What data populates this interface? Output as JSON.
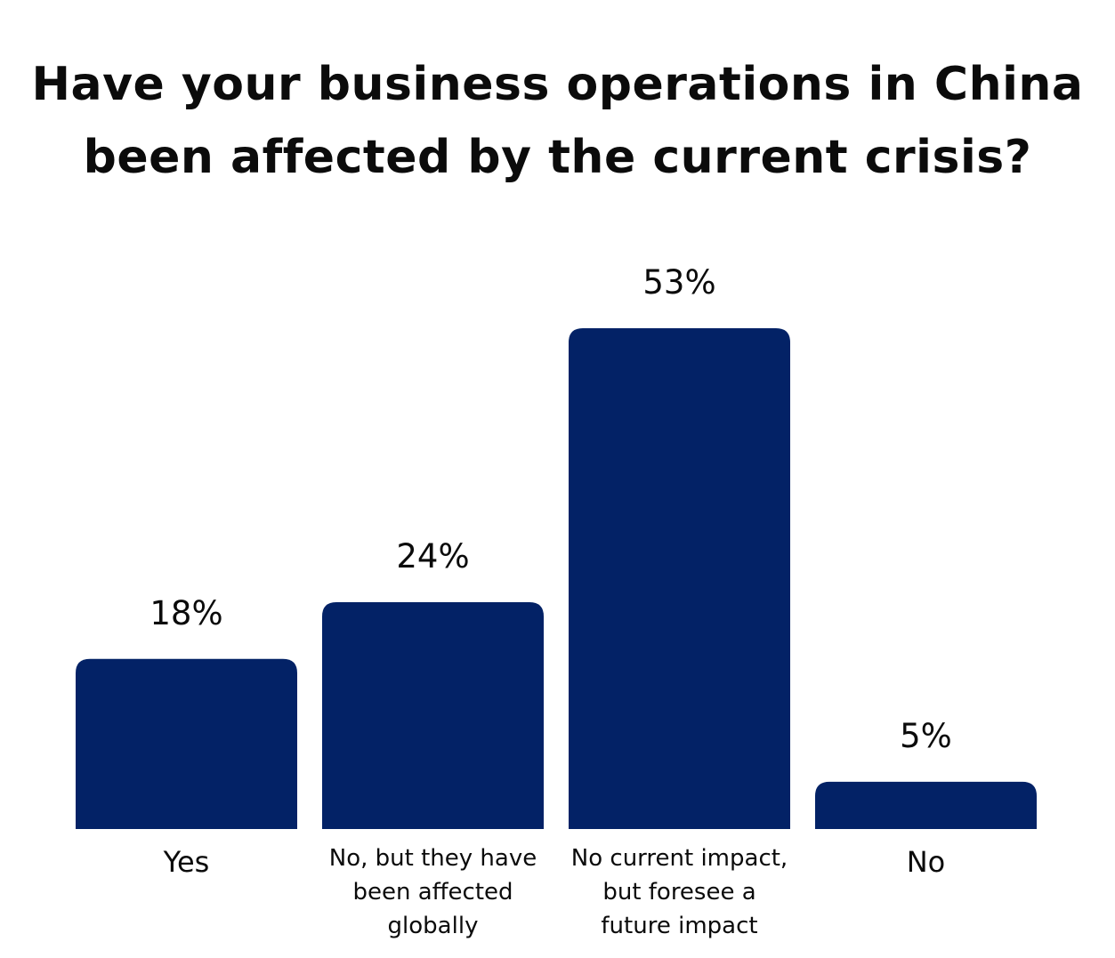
{
  "chart_data": {
    "type": "bar",
    "title_lines": [
      "Have your business operations in China",
      "been affected by the current crisis?"
    ],
    "categories": [
      [
        "Yes"
      ],
      [
        "No, but they have",
        "been affected",
        "globally"
      ],
      [
        "No current impact,",
        "but foresee a",
        "future impact"
      ],
      [
        "No"
      ]
    ],
    "values": [
      18,
      24,
      53,
      5
    ],
    "value_labels": [
      "18%",
      "24%",
      "53%",
      "5%"
    ],
    "ylim": [
      0,
      53
    ],
    "bar_color": "#032266",
    "grid": false,
    "legend": "none"
  }
}
